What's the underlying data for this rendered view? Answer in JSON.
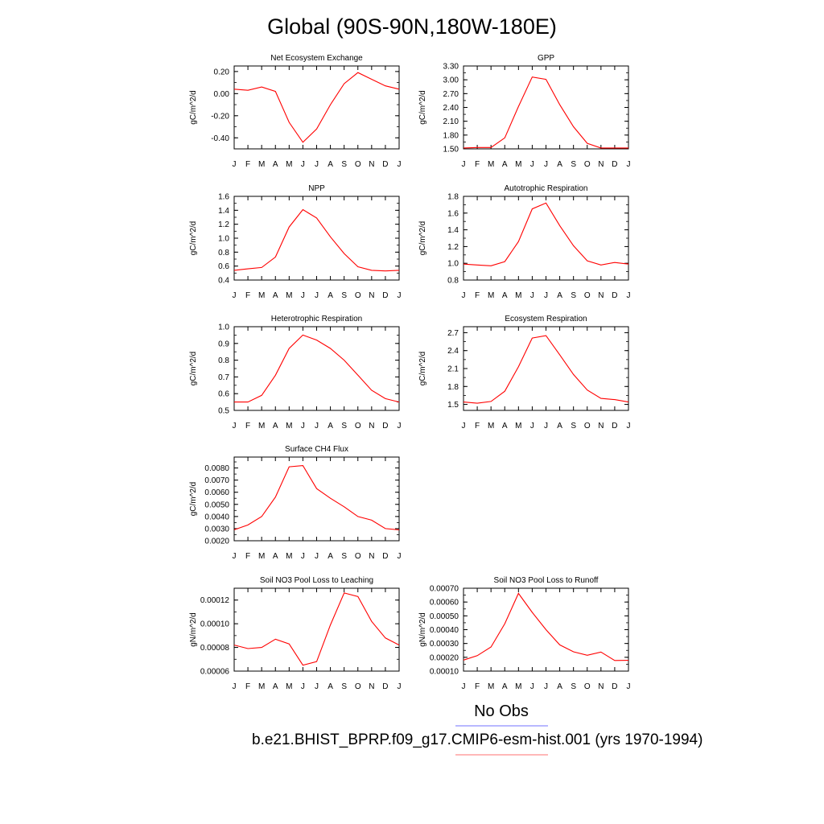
{
  "title": "Global (90S-90N,180W-180E)",
  "month_labels": [
    "J",
    "F",
    "M",
    "A",
    "M",
    "J",
    "J",
    "A",
    "S",
    "O",
    "N",
    "D",
    "J"
  ],
  "legend": {
    "entries": [
      {
        "label": "No Obs",
        "color": "#0000ff"
      },
      {
        "label": "b.e21.BHIST_BPRP.f09_g17.CMIP6-esm-hist.001 (yrs 1970-1994)",
        "color": "#ff0000"
      }
    ]
  },
  "line_color": "#ff0000",
  "chart_data": [
    {
      "type": "line",
      "title": "Net Ecosystem Exchange",
      "ylabel": "gC/m^2/d",
      "ylim": [
        -0.5,
        0.25
      ],
      "yticks": [
        0.2,
        0.0,
        -0.2,
        -0.4
      ],
      "ytick_labels": [
        "0.20",
        "0.00",
        "-0.20",
        "-0.40"
      ],
      "x": [
        "J",
        "F",
        "M",
        "A",
        "M",
        "J",
        "J",
        "A",
        "S",
        "O",
        "N",
        "D",
        "J"
      ],
      "values": [
        0.04,
        0.03,
        0.06,
        0.02,
        -0.26,
        -0.44,
        -0.32,
        -0.1,
        0.09,
        0.19,
        0.13,
        0.07,
        0.04
      ]
    },
    {
      "type": "line",
      "title": "GPP",
      "ylabel": "gC/m^2/d",
      "ylim": [
        1.5,
        3.3
      ],
      "yticks": [
        3.3,
        3.0,
        2.7,
        2.4,
        2.1,
        1.8,
        1.5
      ],
      "ytick_labels": [
        "3.30",
        "3.00",
        "2.70",
        "2.40",
        "2.10",
        "1.80",
        "1.50"
      ],
      "x": [
        "J",
        "F",
        "M",
        "A",
        "M",
        "J",
        "J",
        "A",
        "S",
        "O",
        "N",
        "D",
        "J"
      ],
      "values": [
        1.52,
        1.53,
        1.53,
        1.74,
        2.42,
        3.06,
        3.01,
        2.46,
        1.98,
        1.62,
        1.52,
        1.52,
        1.52
      ]
    },
    {
      "type": "line",
      "title": "NPP",
      "ylabel": "gC/m^2/d",
      "ylim": [
        0.4,
        1.6
      ],
      "yticks": [
        1.6,
        1.4,
        1.2,
        1.0,
        0.8,
        0.6,
        0.4
      ],
      "ytick_labels": [
        "1.6",
        "1.4",
        "1.2",
        "1.0",
        "0.8",
        "0.6",
        "0.4"
      ],
      "x": [
        "J",
        "F",
        "M",
        "A",
        "M",
        "J",
        "J",
        "A",
        "S",
        "O",
        "N",
        "D",
        "J"
      ],
      "values": [
        0.54,
        0.56,
        0.58,
        0.73,
        1.16,
        1.41,
        1.29,
        1.02,
        0.78,
        0.59,
        0.54,
        0.53,
        0.54
      ]
    },
    {
      "type": "line",
      "title": "Autotrophic Respiration",
      "ylabel": "gC/m^2/d",
      "ylim": [
        0.8,
        1.8
      ],
      "yticks": [
        1.8,
        1.6,
        1.4,
        1.2,
        1.0,
        0.8
      ],
      "ytick_labels": [
        "1.8",
        "1.6",
        "1.4",
        "1.2",
        "1.0",
        "0.8"
      ],
      "x": [
        "J",
        "F",
        "M",
        "A",
        "M",
        "J",
        "J",
        "A",
        "S",
        "O",
        "N",
        "D",
        "J"
      ],
      "values": [
        0.99,
        0.98,
        0.97,
        1.02,
        1.26,
        1.65,
        1.72,
        1.45,
        1.21,
        1.03,
        0.98,
        1.01,
        0.99
      ]
    },
    {
      "type": "line",
      "title": "Heterotrophic Respiration",
      "ylabel": "gC/m^2/d",
      "ylim": [
        0.5,
        1.0
      ],
      "yticks": [
        1.0,
        0.9,
        0.8,
        0.7,
        0.6,
        0.5
      ],
      "ytick_labels": [
        "1.0",
        "0.9",
        "0.8",
        "0.7",
        "0.6",
        "0.5"
      ],
      "x": [
        "J",
        "F",
        "M",
        "A",
        "M",
        "J",
        "J",
        "A",
        "S",
        "O",
        "N",
        "D",
        "J"
      ],
      "values": [
        0.55,
        0.55,
        0.59,
        0.71,
        0.87,
        0.95,
        0.92,
        0.87,
        0.8,
        0.71,
        0.62,
        0.57,
        0.55
      ]
    },
    {
      "type": "line",
      "title": "Ecosystem Respiration",
      "ylabel": "gC/m^2/d",
      "ylim": [
        1.4,
        2.8
      ],
      "yticks": [
        2.7,
        2.4,
        2.1,
        1.8,
        1.5
      ],
      "ytick_labels": [
        "2.7",
        "2.4",
        "2.1",
        "1.8",
        "1.5"
      ],
      "x": [
        "J",
        "F",
        "M",
        "A",
        "M",
        "J",
        "J",
        "A",
        "S",
        "O",
        "N",
        "D",
        "J"
      ],
      "values": [
        1.54,
        1.52,
        1.55,
        1.72,
        2.13,
        2.61,
        2.65,
        2.33,
        2.0,
        1.74,
        1.6,
        1.58,
        1.54
      ]
    },
    {
      "type": "line",
      "title": "Surface CH4 Flux",
      "ylabel": "gC/m^2/d",
      "ylim": [
        0.002,
        0.0089
      ],
      "yticks": [
        0.008,
        0.007,
        0.006,
        0.005,
        0.004,
        0.003,
        0.002
      ],
      "ytick_labels": [
        "0.0080",
        "0.0070",
        "0.0060",
        "0.0050",
        "0.0040",
        "0.0030",
        "0.0020"
      ],
      "x": [
        "J",
        "F",
        "M",
        "A",
        "M",
        "J",
        "J",
        "A",
        "S",
        "O",
        "N",
        "D",
        "J"
      ],
      "values": [
        0.0029,
        0.0033,
        0.004,
        0.0056,
        0.0081,
        0.0082,
        0.0063,
        0.0055,
        0.0048,
        0.004,
        0.0037,
        0.003,
        0.0029
      ]
    },
    {
      "type": "line",
      "title": "Soil NO3 Pool Loss to Leaching",
      "ylabel": "gN/m^2/d",
      "ylim": [
        6e-05,
        0.00013
      ],
      "yticks": [
        0.00012,
        0.0001,
        8e-05,
        6e-05
      ],
      "ytick_labels": [
        "0.00012",
        "0.00010",
        "0.00008",
        "0.00006"
      ],
      "x": [
        "J",
        "F",
        "M",
        "A",
        "M",
        "J",
        "J",
        "A",
        "S",
        "O",
        "N",
        "D",
        "J"
      ],
      "values": [
        8.2e-05,
        7.9e-05,
        8e-05,
        8.7e-05,
        8.3e-05,
        6.5e-05,
        6.8e-05,
        9.9e-05,
        0.000126,
        0.000123,
        0.000102,
        8.8e-05,
        8.2e-05
      ]
    },
    {
      "type": "line",
      "title": "Soil NO3 Pool Loss to Runoff",
      "ylabel": "gN/m^2/d",
      "ylim": [
        0.0001,
        0.0007
      ],
      "yticks": [
        0.0007,
        0.0006,
        0.0005,
        0.0004,
        0.0003,
        0.0002,
        0.0001
      ],
      "ytick_labels": [
        "0.00070",
        "0.00060",
        "0.00050",
        "0.00040",
        "0.00030",
        "0.00020",
        "0.00010"
      ],
      "x": [
        "J",
        "F",
        "M",
        "A",
        "M",
        "J",
        "J",
        "A",
        "S",
        "O",
        "N",
        "D",
        "J"
      ],
      "values": [
        0.00018,
        0.000212,
        0.000275,
        0.000443,
        0.000663,
        0.000525,
        0.0004,
        0.00029,
        0.00024,
        0.000215,
        0.000238,
        0.000177,
        0.000178
      ]
    }
  ]
}
